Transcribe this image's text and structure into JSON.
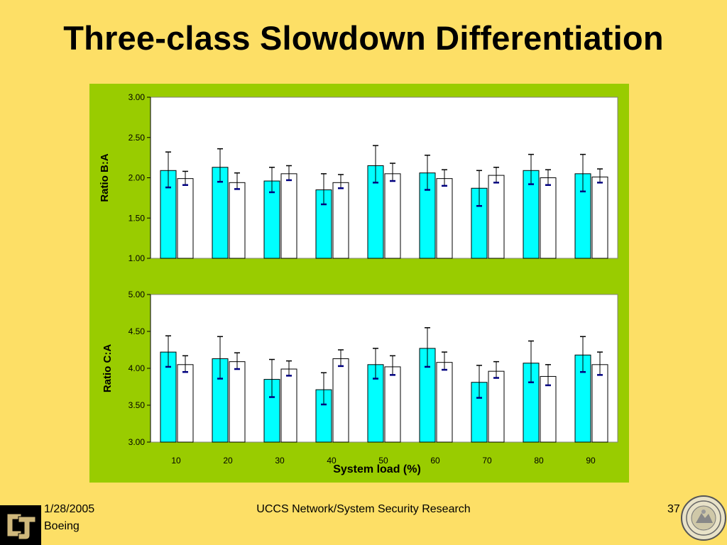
{
  "slide": {
    "title": "Three-class Slowdown Differentiation"
  },
  "footer": {
    "date": "1/28/2005",
    "org": "Boeing",
    "center": "UCCS Network/System Security Research",
    "page": "37"
  },
  "colors": {
    "slide_background": "#FDDF66",
    "panel_background": "#99CC00",
    "plot_background": "#FFFFFF",
    "series_cyan": "#00FFFF",
    "series_white": "#FFFFFF",
    "error_cap": "#000080"
  },
  "logos": {
    "left": "cu-logo",
    "right": "university-of-colorado-seal"
  },
  "chart_data": [
    {
      "type": "bar",
      "ylabel": "Ratio B:A",
      "xlabel": "",
      "ylim": [
        1.0,
        3.0
      ],
      "yticks": [
        "1.00",
        "1.50",
        "2.00",
        "2.50",
        "3.00"
      ],
      "categories": [
        "10",
        "20",
        "30",
        "40",
        "50",
        "60",
        "70",
        "80",
        "90"
      ],
      "show_category_labels": false,
      "series": [
        {
          "color": "#00FFFF",
          "values": [
            2.09,
            2.13,
            1.96,
            1.85,
            2.15,
            2.06,
            1.87,
            2.09,
            2.05
          ],
          "err_high": [
            2.32,
            2.36,
            2.13,
            2.05,
            2.4,
            2.28,
            2.09,
            2.29,
            2.29
          ],
          "err_low": [
            1.88,
            1.95,
            1.82,
            1.67,
            1.94,
            1.85,
            1.65,
            1.92,
            1.83
          ]
        },
        {
          "color": "#FFFFFF",
          "values": [
            1.99,
            1.94,
            2.05,
            1.94,
            2.05,
            1.99,
            2.03,
            2.0,
            2.01
          ],
          "err_high": [
            2.08,
            2.06,
            2.15,
            2.04,
            2.18,
            2.1,
            2.13,
            2.1,
            2.11
          ],
          "err_low": [
            1.91,
            1.86,
            1.97,
            1.87,
            1.96,
            1.9,
            1.94,
            1.91,
            1.94
          ]
        }
      ]
    },
    {
      "type": "bar",
      "ylabel": "Ratio C:A",
      "xlabel": "System load (%)",
      "ylim": [
        3.0,
        5.0
      ],
      "yticks": [
        "3.00",
        "3.50",
        "4.00",
        "4.50",
        "5.00"
      ],
      "categories": [
        "10",
        "20",
        "30",
        "40",
        "50",
        "60",
        "70",
        "80",
        "90"
      ],
      "show_category_labels": true,
      "series": [
        {
          "color": "#00FFFF",
          "values": [
            4.22,
            4.13,
            3.85,
            3.71,
            4.05,
            4.27,
            3.81,
            4.07,
            4.18
          ],
          "err_high": [
            4.44,
            4.43,
            4.12,
            3.94,
            4.27,
            4.55,
            4.04,
            4.37,
            4.43
          ],
          "err_low": [
            4.02,
            3.86,
            3.61,
            3.51,
            3.86,
            4.02,
            3.6,
            3.81,
            3.95
          ]
        },
        {
          "color": "#FFFFFF",
          "values": [
            4.05,
            4.09,
            3.99,
            4.13,
            4.02,
            4.08,
            3.96,
            3.89,
            4.05
          ],
          "err_high": [
            4.17,
            4.21,
            4.1,
            4.25,
            4.17,
            4.22,
            4.09,
            4.05,
            4.22
          ],
          "err_low": [
            3.95,
            3.99,
            3.9,
            4.03,
            3.91,
            3.98,
            3.87,
            3.77,
            3.91
          ]
        }
      ]
    }
  ]
}
